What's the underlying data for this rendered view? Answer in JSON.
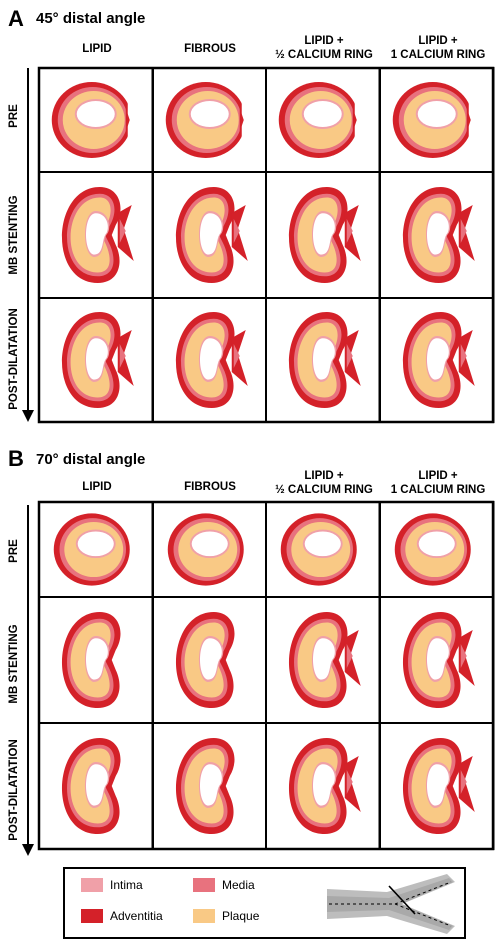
{
  "panels": [
    {
      "letter": "A",
      "title": "45° distal angle",
      "columns": [
        "LIPID",
        "FIBROUS",
        "LIPID +\n½ CALCIUM RING",
        "LIPID +\n1 CALCIUM RING"
      ],
      "rows": [
        "PRE",
        "MB STENTING",
        "POST-DILATATION"
      ]
    },
    {
      "letter": "B",
      "title": "70° distal angle",
      "columns": [
        "LIPID",
        "FIBROUS",
        "LIPID +\n½ CALCIUM RING",
        "LIPID +\n1 CALCIUM RING"
      ],
      "rows": [
        "PRE",
        "MB STENTING",
        "POST-DILATATION"
      ]
    }
  ],
  "legend": {
    "items": [
      {
        "label": "Intima",
        "color": "#f0a0a8"
      },
      {
        "label": "Media",
        "color": "#e8727e"
      },
      {
        "label": "Adventitia",
        "color": "#d42129"
      },
      {
        "label": "Plaque",
        "color": "#f9c985"
      }
    ]
  },
  "colors": {
    "adventitia": "#d42129",
    "media": "#e8727e",
    "intima": "#f0a0a8",
    "plaque": "#f9c985",
    "lumen": "#ffffff"
  }
}
